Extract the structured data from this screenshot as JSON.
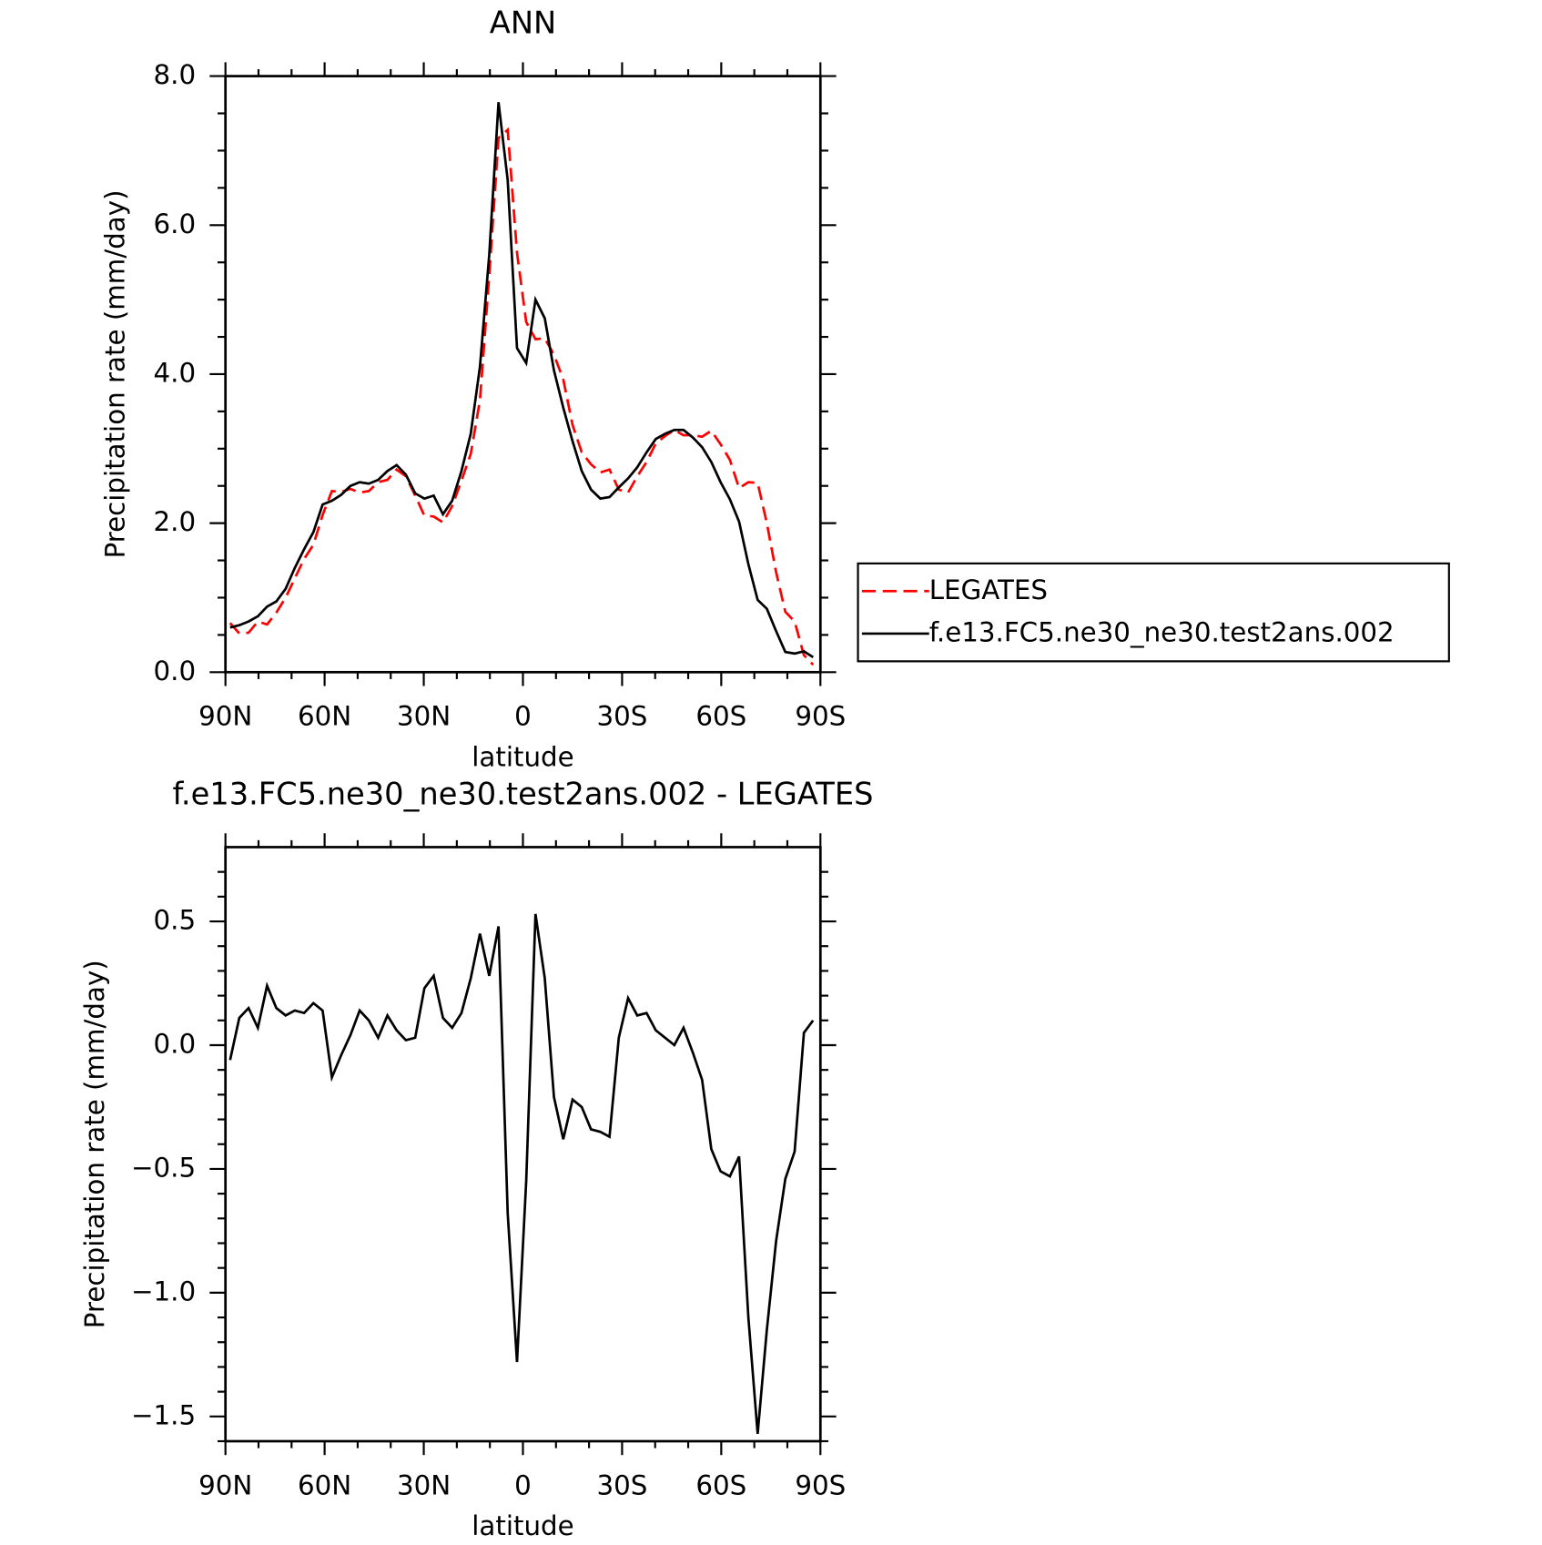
{
  "chart_data": [
    {
      "type": "line",
      "title": "ANN",
      "xlabel": "latitude",
      "ylabel": "Precipitation rate (mm/day)",
      "x": [
        88.6,
        85.8,
        83.0,
        80.2,
        77.4,
        74.6,
        71.8,
        69.0,
        66.2,
        63.4,
        60.6,
        57.8,
        55.0,
        52.2,
        49.4,
        46.6,
        43.8,
        41.0,
        38.2,
        35.4,
        32.6,
        29.8,
        27.0,
        24.2,
        21.4,
        18.6,
        15.8,
        13.0,
        10.2,
        7.4,
        4.6,
        1.8,
        -1.0,
        -3.8,
        -6.6,
        -9.4,
        -12.2,
        -15.0,
        -17.8,
        -20.6,
        -23.4,
        -26.2,
        -29.0,
        -31.8,
        -34.6,
        -37.4,
        -40.2,
        -43.0,
        -45.8,
        -48.6,
        -51.4,
        -54.2,
        -57.0,
        -59.8,
        -62.6,
        -65.4,
        -68.2,
        -71.0,
        -73.8,
        -76.6,
        -79.4,
        -82.2,
        -85.0,
        -87.8
      ],
      "series": [
        {
          "name": "LEGATES",
          "color": "#ff0000",
          "dash": true,
          "values": [
            0.66,
            0.52,
            0.53,
            0.68,
            0.64,
            0.8,
            1.0,
            1.26,
            1.52,
            1.71,
            2.11,
            2.43,
            2.42,
            2.46,
            2.41,
            2.43,
            2.55,
            2.58,
            2.72,
            2.63,
            2.37,
            2.1,
            2.09,
            2.01,
            2.23,
            2.57,
            2.93,
            3.65,
            5.32,
            7.17,
            7.28,
            5.63,
            4.7,
            4.47,
            4.48,
            4.26,
            3.93,
            3.32,
            2.95,
            2.79,
            2.68,
            2.72,
            2.45,
            2.41,
            2.63,
            2.82,
            3.07,
            3.17,
            3.25,
            3.18,
            3.18,
            3.16,
            3.24,
            3.06,
            2.85,
            2.47,
            2.55,
            2.54,
            2.0,
            1.34,
            0.81,
            0.68,
            0.23,
            0.1
          ]
        },
        {
          "name": "f.e13.FC5.ne30_ne30.test2ans.002",
          "color": "#000000",
          "dash": false,
          "values": [
            0.6,
            0.63,
            0.68,
            0.75,
            0.88,
            0.95,
            1.12,
            1.4,
            1.65,
            1.88,
            2.25,
            2.3,
            2.38,
            2.5,
            2.55,
            2.53,
            2.58,
            2.7,
            2.78,
            2.65,
            2.4,
            2.33,
            2.37,
            2.12,
            2.3,
            2.7,
            3.2,
            4.1,
            5.6,
            7.65,
            6.6,
            4.35,
            4.15,
            5.0,
            4.75,
            4.05,
            3.55,
            3.1,
            2.7,
            2.45,
            2.33,
            2.35,
            2.48,
            2.6,
            2.75,
            2.95,
            3.13,
            3.2,
            3.25,
            3.25,
            3.15,
            3.02,
            2.82,
            2.55,
            2.32,
            2.02,
            1.45,
            0.97,
            0.85,
            0.55,
            0.27,
            0.25,
            0.28,
            0.2
          ]
        }
      ],
      "xlim": [
        90,
        -90
      ],
      "xticks": [
        {
          "value": 90,
          "label": "90N"
        },
        {
          "value": 60,
          "label": "60N"
        },
        {
          "value": 30,
          "label": "30N"
        },
        0,
        {
          "value": -30,
          "label": "30S"
        },
        {
          "value": -60,
          "label": "60S"
        },
        {
          "value": -90,
          "label": "90S"
        }
      ],
      "xminorticks": [
        80,
        70,
        50,
        40,
        20,
        10,
        -10,
        -20,
        -40,
        -50,
        -70,
        -80
      ],
      "ylim": [
        0,
        8
      ],
      "yticks": [
        {
          "value": 0,
          "label": "0.0"
        },
        {
          "value": 2,
          "label": "2.0"
        },
        {
          "value": 4,
          "label": "4.0"
        },
        {
          "value": 6,
          "label": "6.0"
        },
        {
          "value": 8,
          "label": "8.0"
        }
      ],
      "yminorticks": [
        0.5,
        1,
        1.5,
        2.5,
        3,
        3.5,
        4.5,
        5,
        5.5,
        6.5,
        7,
        7.5
      ],
      "legend": "right"
    },
    {
      "type": "line",
      "title": "f.e13.FC5.ne30_ne30.test2ans.002 - LEGATES",
      "xlabel": "latitude",
      "ylabel": "Precipitation rate (mm/day)",
      "x": [
        88.6,
        85.8,
        83.0,
        80.2,
        77.4,
        74.6,
        71.8,
        69.0,
        66.2,
        63.4,
        60.6,
        57.8,
        55.0,
        52.2,
        49.4,
        46.6,
        43.8,
        41.0,
        38.2,
        35.4,
        32.6,
        29.8,
        27.0,
        24.2,
        21.4,
        18.6,
        15.8,
        13.0,
        10.2,
        7.4,
        4.6,
        1.8,
        -1.0,
        -3.8,
        -6.6,
        -9.4,
        -12.2,
        -15.0,
        -17.8,
        -20.6,
        -23.4,
        -26.2,
        -29.0,
        -31.8,
        -34.6,
        -37.4,
        -40.2,
        -43.0,
        -45.8,
        -48.6,
        -51.4,
        -54.2,
        -57.0,
        -59.8,
        -62.6,
        -65.4,
        -68.2,
        -71.0,
        -73.8,
        -76.6,
        -79.4,
        -82.2,
        -85.0,
        -87.8
      ],
      "series": [
        {
          "color": "#000000",
          "dash": false,
          "values": [
            -0.06,
            0.11,
            0.15,
            0.07,
            0.24,
            0.15,
            0.12,
            0.14,
            0.13,
            0.17,
            0.14,
            -0.13,
            -0.04,
            0.04,
            0.14,
            0.1,
            0.03,
            0.12,
            0.06,
            0.02,
            0.03,
            0.23,
            0.28,
            0.11,
            0.07,
            0.13,
            0.27,
            0.45,
            0.28,
            0.48,
            -0.68,
            -1.28,
            -0.55,
            0.53,
            0.27,
            -0.21,
            -0.38,
            -0.22,
            -0.25,
            -0.34,
            -0.35,
            -0.37,
            0.03,
            0.19,
            0.12,
            0.13,
            0.06,
            0.03,
            0.0,
            0.07,
            -0.03,
            -0.14,
            -0.42,
            -0.51,
            -0.53,
            -0.45,
            -1.1,
            -1.57,
            -1.15,
            -0.79,
            -0.54,
            -0.43,
            0.05,
            0.1
          ]
        }
      ],
      "xlim": [
        90,
        -90
      ],
      "xticks": [
        {
          "value": 90,
          "label": "90N"
        },
        {
          "value": 60,
          "label": "60N"
        },
        {
          "value": 30,
          "label": "30N"
        },
        0,
        {
          "value": -30,
          "label": "30S"
        },
        {
          "value": -60,
          "label": "60S"
        },
        {
          "value": -90,
          "label": "90S"
        }
      ],
      "xminorticks": [
        80,
        70,
        50,
        40,
        20,
        10,
        -10,
        -20,
        -40,
        -50,
        -70,
        -80
      ],
      "ylim": [
        -1.6,
        0.8
      ],
      "yticks": [
        {
          "value": 0.5,
          "label": "0.5"
        },
        {
          "value": 0,
          "label": "0.0"
        },
        {
          "value": -0.5,
          "label": "−0.5"
        },
        {
          "value": -1,
          "label": "−1.0"
        },
        {
          "value": -1.5,
          "label": "−1.5"
        }
      ],
      "yminorticks": [
        0.7,
        0.6,
        0.4,
        0.3,
        0.2,
        0.1,
        -0.1,
        -0.2,
        -0.3,
        -0.4,
        -0.6,
        -0.7,
        -0.8,
        -0.9,
        -1.1,
        -1.2,
        -1.3,
        -1.4,
        -1.6
      ]
    }
  ]
}
